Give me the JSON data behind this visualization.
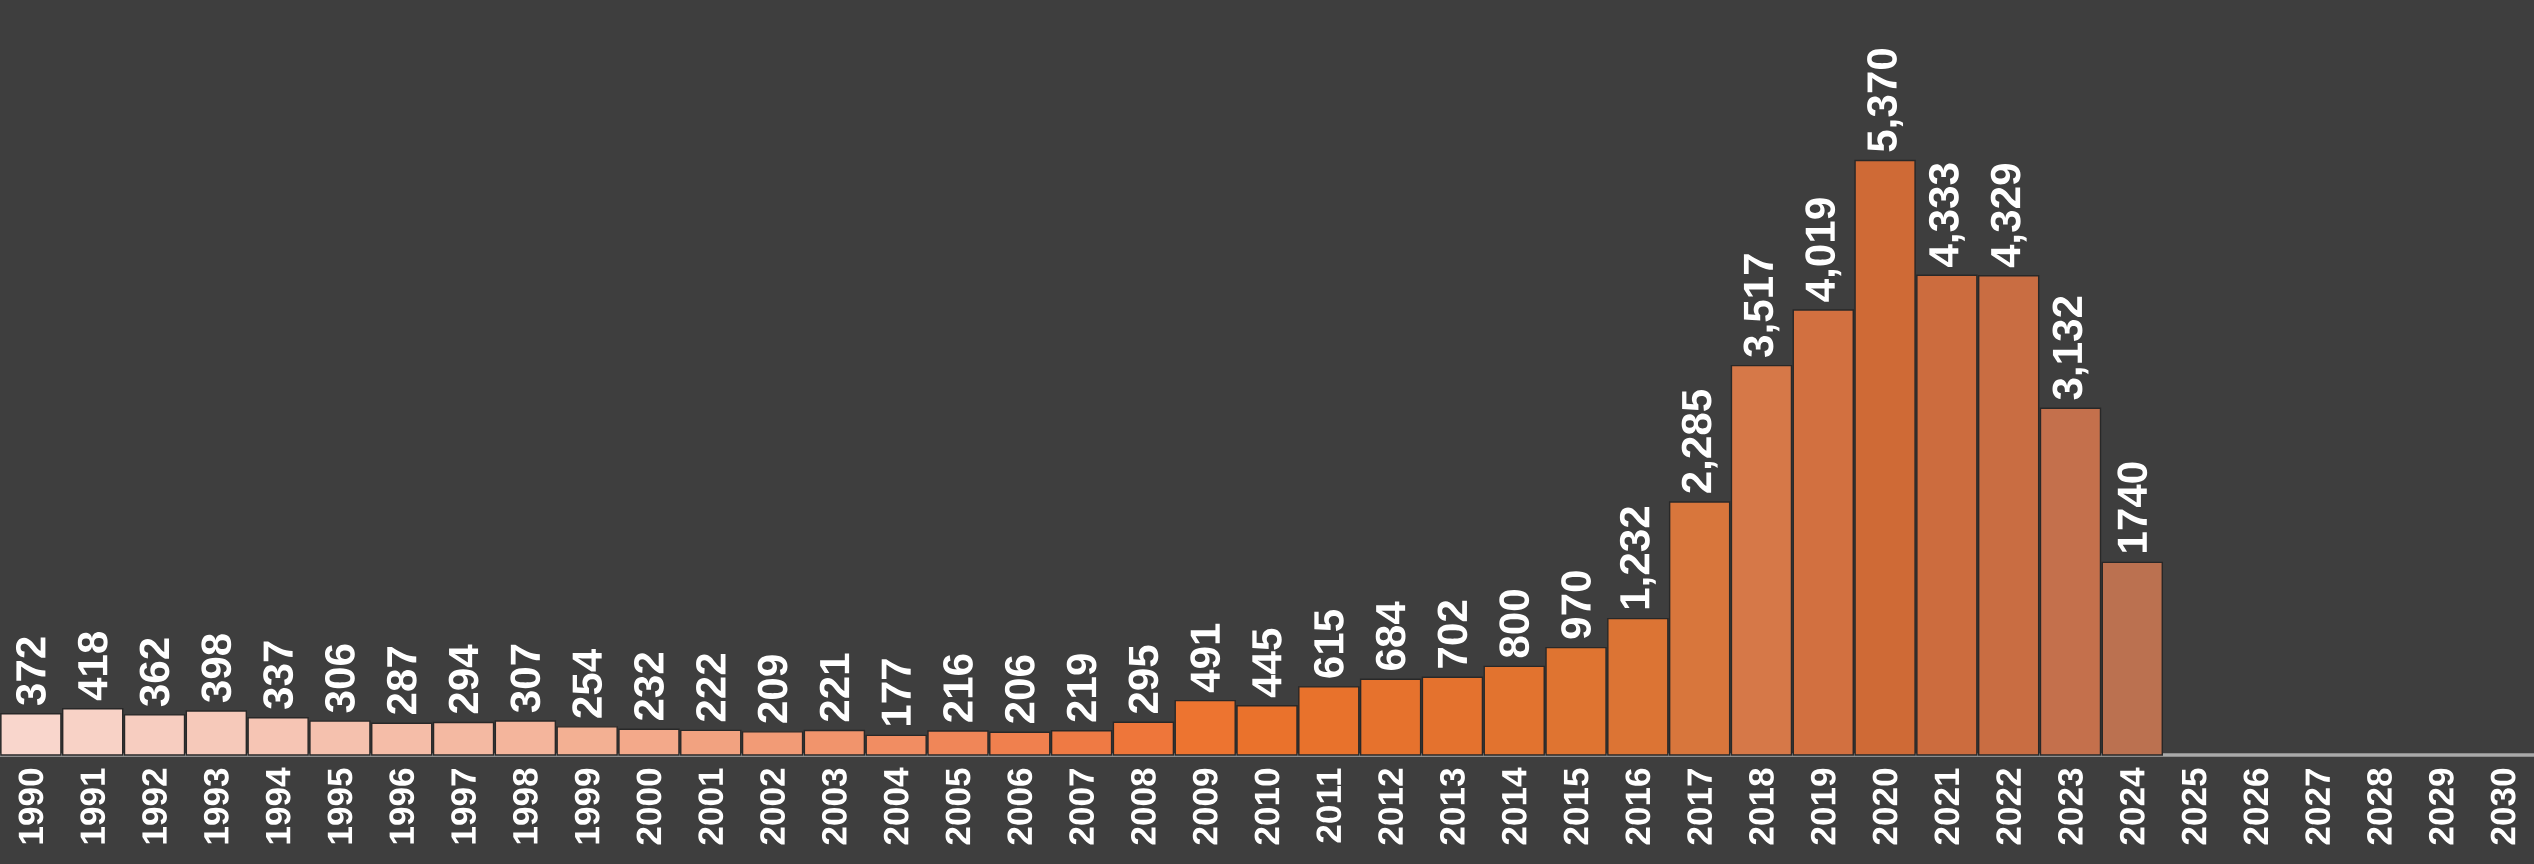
{
  "chart_data": {
    "type": "bar",
    "categories": [
      "1990",
      "1991",
      "1992",
      "1993",
      "1994",
      "1995",
      "1996",
      "1997",
      "1998",
      "1999",
      "2000",
      "2001",
      "2002",
      "2003",
      "2004",
      "2005",
      "2006",
      "2007",
      "2008",
      "2009",
      "2010",
      "2011",
      "2012",
      "2013",
      "2014",
      "2015",
      "2016",
      "2017",
      "2018",
      "2019",
      "2020",
      "2021",
      "2022",
      "2023",
      "2024",
      "2025",
      "2026",
      "2027",
      "2028",
      "2029",
      "2030"
    ],
    "values": [
      372,
      418,
      362,
      398,
      337,
      306,
      287,
      294,
      307,
      254,
      232,
      222,
      209,
      221,
      177,
      216,
      206,
      219,
      295,
      491,
      445,
      615,
      684,
      702,
      800,
      970,
      1232,
      2285,
      3517,
      4019,
      5370,
      4333,
      4329,
      3132,
      1740,
      null,
      null,
      null,
      null,
      null,
      null
    ],
    "value_labels": [
      "372",
      "418",
      "362",
      "398",
      "337",
      "306",
      "287",
      "294",
      "307",
      "254",
      "232",
      "222",
      "209",
      "221",
      "177",
      "216",
      "206",
      "219",
      "295",
      "491",
      "445",
      "615",
      "684",
      "702",
      "800",
      "970",
      "1,232",
      "2,285",
      "3,517",
      "4,019",
      "5,370",
      "4,333",
      "4,329",
      "3,132",
      "1740",
      null,
      null,
      null,
      null,
      null,
      null
    ],
    "colors": [
      "#f9d6cc",
      "#f8d2c6",
      "#f7cdc0",
      "#f6c9ba",
      "#f6c5b4",
      "#f5c1ae",
      "#f5bda8",
      "#f4b9a2",
      "#f4b59c",
      "#f3b093",
      "#f3a98a",
      "#f2a280",
      "#f29b76",
      "#f1946c",
      "#f18d62",
      "#f08658",
      "#f0804e",
      "#ef7a44",
      "#ee763a",
      "#ed7430",
      "#ea722c",
      "#e8722c",
      "#e6722d",
      "#e4722e",
      "#e2732f",
      "#df7431",
      "#dc7434",
      "#d8763c",
      "#d67848",
      "#d27040",
      "#cf6a36",
      "#cc6c3e",
      "#c96d42",
      "#c4704c",
      "#bb7150",
      null,
      null,
      null,
      null,
      null,
      null
    ]
  }
}
